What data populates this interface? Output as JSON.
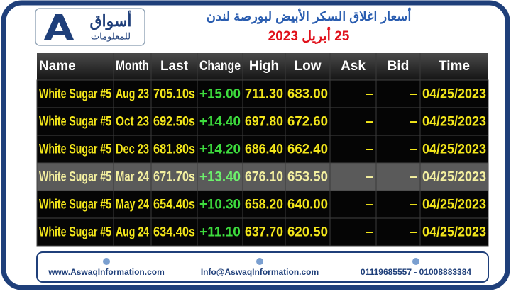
{
  "header": {
    "logo_name": "أسواق",
    "logo_sub": "للمعلومات",
    "title": "أسعار اغلاق السكر الأبيض لبورصة لندن",
    "date": "25 أبريل 2023"
  },
  "table": {
    "columns": [
      "Name",
      "Month",
      "Last",
      "Change",
      "High",
      "Low",
      "Ask",
      "Bid",
      "Time"
    ],
    "rows": [
      [
        "White Sugar #5",
        "Aug 23",
        "705.10s",
        "+15.00",
        "711.30",
        "683.00",
        "–",
        "–",
        "04/25/2023"
      ],
      [
        "White Sugar #5",
        "Oct 23",
        "692.50s",
        "+14.40",
        "697.80",
        "672.60",
        "–",
        "–",
        "04/25/2023"
      ],
      [
        "White Sugar #5",
        "Dec 23",
        "681.80s",
        "+14.20",
        "686.40",
        "662.40",
        "–",
        "–",
        "04/25/2023"
      ],
      [
        "White Sugar #5",
        "Mar 24",
        "671.70s",
        "+13.40",
        "676.10",
        "653.50",
        "–",
        "–",
        "04/25/2023"
      ],
      [
        "White Sugar #5",
        "May 24",
        "654.40s",
        "+10.30",
        "658.20",
        "640.00",
        "–",
        "–",
        "04/25/2023"
      ],
      [
        "White Sugar #5",
        "Aug 24",
        "634.40s",
        "+11.10",
        "637.70",
        "620.50",
        "–",
        "–",
        "04/25/2023"
      ]
    ]
  },
  "footer": {
    "website": "www.AswaqInformation.com",
    "email": "Info@AswaqInformation.com",
    "phone": "01119685557 - 01008883384"
  }
}
